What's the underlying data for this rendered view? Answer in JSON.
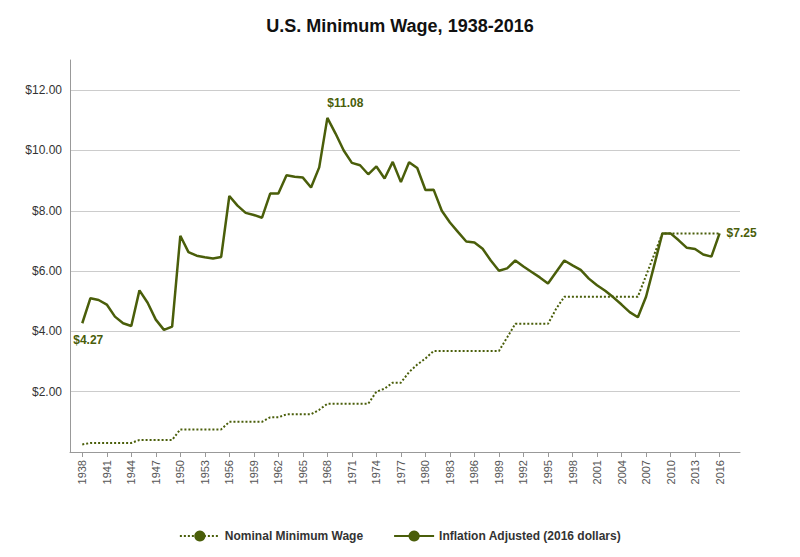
{
  "chart_data": {
    "type": "line",
    "title": "U.S. Minimum Wage, 1938-2016",
    "x": [
      1938,
      1939,
      1940,
      1941,
      1942,
      1943,
      1944,
      1945,
      1946,
      1947,
      1948,
      1949,
      1950,
      1951,
      1952,
      1953,
      1954,
      1955,
      1956,
      1957,
      1958,
      1959,
      1960,
      1961,
      1962,
      1963,
      1964,
      1965,
      1966,
      1967,
      1968,
      1969,
      1970,
      1971,
      1972,
      1973,
      1974,
      1975,
      1976,
      1977,
      1978,
      1979,
      1980,
      1981,
      1982,
      1983,
      1984,
      1985,
      1986,
      1987,
      1988,
      1989,
      1990,
      1991,
      1992,
      1993,
      1994,
      1995,
      1996,
      1997,
      1998,
      1999,
      2000,
      2001,
      2002,
      2003,
      2004,
      2005,
      2006,
      2007,
      2008,
      2009,
      2010,
      2011,
      2012,
      2013,
      2014,
      2015,
      2016
    ],
    "series": [
      {
        "name": "Nominal Minimum Wage",
        "color": "#4a5e0a",
        "line_style": "dotted",
        "values": [
          0.25,
          0.3,
          0.3,
          0.3,
          0.3,
          0.3,
          0.3,
          0.4,
          0.4,
          0.4,
          0.4,
          0.4,
          0.75,
          0.75,
          0.75,
          0.75,
          0.75,
          0.75,
          1.0,
          1.0,
          1.0,
          1.0,
          1.0,
          1.15,
          1.15,
          1.25,
          1.25,
          1.25,
          1.25,
          1.4,
          1.6,
          1.6,
          1.6,
          1.6,
          1.6,
          1.6,
          2.0,
          2.1,
          2.3,
          2.3,
          2.65,
          2.9,
          3.1,
          3.35,
          3.35,
          3.35,
          3.35,
          3.35,
          3.35,
          3.35,
          3.35,
          3.35,
          3.8,
          4.25,
          4.25,
          4.25,
          4.25,
          4.25,
          4.75,
          5.15,
          5.15,
          5.15,
          5.15,
          5.15,
          5.15,
          5.15,
          5.15,
          5.15,
          5.15,
          5.85,
          6.55,
          7.25,
          7.25,
          7.25,
          7.25,
          7.25,
          7.25,
          7.25,
          7.25
        ]
      },
      {
        "name": "Inflation Adjusted (2016 dollars)",
        "color": "#4a5e0a",
        "line_style": "solid",
        "values": [
          4.27,
          5.1,
          5.04,
          4.89,
          4.49,
          4.27,
          4.18,
          5.36,
          4.95,
          4.39,
          4.05,
          4.16,
          7.17,
          6.63,
          6.51,
          6.46,
          6.42,
          6.47,
          8.49,
          8.17,
          7.93,
          7.86,
          7.77,
          8.57,
          8.57,
          9.18,
          9.13,
          9.1,
          8.77,
          9.44,
          11.08,
          10.56,
          10.0,
          9.59,
          9.51,
          9.21,
          9.47,
          9.07,
          9.62,
          8.95,
          9.61,
          9.42,
          8.69,
          8.7,
          8.0,
          7.61,
          7.29,
          6.98,
          6.95,
          6.74,
          6.35,
          6.01,
          6.09,
          6.35,
          6.15,
          5.97,
          5.79,
          5.59,
          5.97,
          6.35,
          6.19,
          6.04,
          5.75,
          5.53,
          5.35,
          5.13,
          4.89,
          4.64,
          4.47,
          5.15,
          6.19,
          7.25,
          7.25,
          7.02,
          6.77,
          6.73,
          6.55,
          6.48,
          7.25
        ]
      }
    ],
    "annotations": [
      {
        "text": "$11.08",
        "x": 1968,
        "y": 11.08,
        "color": "#4a5e0a"
      },
      {
        "text": "$4.27",
        "x": 1938,
        "y": 4.27,
        "color": "#4a5e0a"
      },
      {
        "text": "$7.25",
        "x": 2016,
        "y": 7.25,
        "color": "#4a5e0a"
      }
    ],
    "xlim": [
      1936.5,
      2018.5
    ],
    "xticks": [
      1938,
      1941,
      1944,
      1947,
      1950,
      1953,
      1956,
      1959,
      1962,
      1965,
      1968,
      1971,
      1974,
      1977,
      1980,
      1983,
      1986,
      1989,
      1992,
      1995,
      1998,
      2001,
      2004,
      2007,
      2010,
      2013,
      2016
    ],
    "ylim": [
      0,
      13
    ],
    "yticks": [
      {
        "value": 2.0,
        "label": "$2.00"
      },
      {
        "value": 4.0,
        "label": "$4.00"
      },
      {
        "value": 6.0,
        "label": "$6.00"
      },
      {
        "value": 8.0,
        "label": "$8.00"
      },
      {
        "value": 10.0,
        "label": "$10.00"
      },
      {
        "value": 12.0,
        "label": "$12.00"
      }
    ],
    "grid": true,
    "legend": "bottom"
  }
}
